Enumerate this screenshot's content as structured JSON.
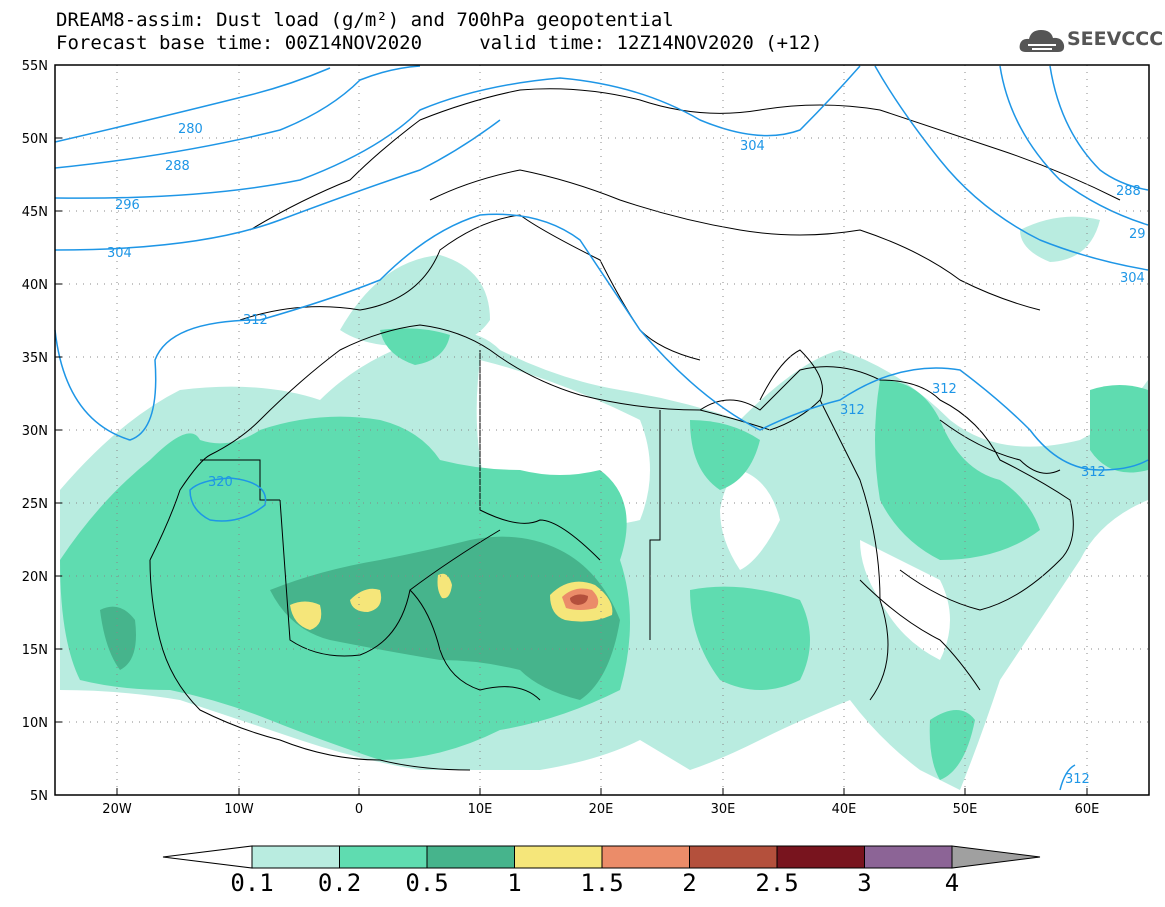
{
  "title": {
    "line1": "DREAM8-assim: Dust load (g/m²) and 700hPa geopotential",
    "line2": "Forecast base time: 00Z14NOV2020     valid time: 12Z14NOV2020 (+12)"
  },
  "logo": {
    "text": "SEEVCCC",
    "icon": "cloud-icon"
  },
  "axes": {
    "lat_labels": [
      "55N",
      "50N",
      "45N",
      "40N",
      "35N",
      "30N",
      "25N",
      "20N",
      "15N",
      "10N",
      "5N"
    ],
    "lon_labels": [
      "20W",
      "10W",
      "0",
      "10E",
      "20E",
      "30E",
      "40E",
      "50E",
      "60E"
    ]
  },
  "contour_labels": [
    "280",
    "288",
    "296",
    "304",
    "304",
    "312",
    "312",
    "312",
    "312",
    "320",
    "288",
    "29",
    "304",
    "312"
  ],
  "colorbar": {
    "labels": [
      "0.1",
      "0.2",
      "0.5",
      "1",
      "1.5",
      "2",
      "2.5",
      "3",
      "4"
    ],
    "colors": [
      "#b9ece0",
      "#5fdcb0",
      "#46b48c",
      "#f5e67a",
      "#eb8c69",
      "#b4503c",
      "#78141e",
      "#8c6496"
    ],
    "under_color": "#ffffff",
    "over_color": "#a0a0a0"
  },
  "colors": {
    "contour": "#1e96e6",
    "border": "#000000"
  }
}
